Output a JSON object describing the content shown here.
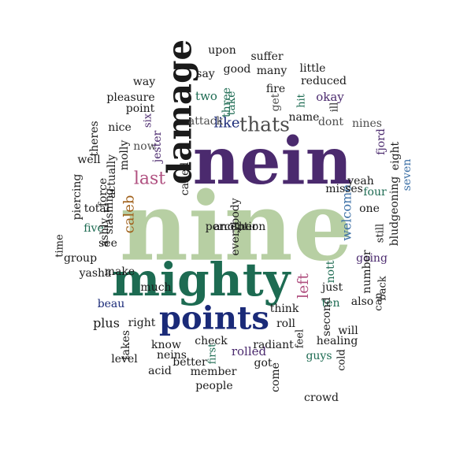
{
  "colors": {
    "black": "#1a1a1a",
    "gray": "#4d4d4d",
    "sage": "#b7cfa3",
    "purple": "#4b2a6e",
    "teal": "#1d6b52",
    "navy": "#1a2a78",
    "rose": "#b05080",
    "steel": "#3b6fa6",
    "ochre": "#a0601a"
  },
  "words": [
    {
      "text": "nine",
      "color": "sage",
      "size": 120,
      "rotate": 0
    },
    {
      "text": "nein",
      "color": "purple",
      "size": 82,
      "rotate": 0
    },
    {
      "text": "mighty",
      "color": "teal",
      "size": 58,
      "rotate": 0
    },
    {
      "text": "damage",
      "color": "black",
      "size": 42,
      "rotate": -90
    },
    {
      "text": "points",
      "color": "navy",
      "size": 40,
      "rotate": 0
    },
    {
      "text": "thats",
      "color": "gray",
      "size": 25,
      "rotate": 0
    },
    {
      "text": "last",
      "color": "rose",
      "size": 22,
      "rotate": 0
    },
    {
      "text": "like",
      "color": "navy",
      "size": 18,
      "rotate": 0
    },
    {
      "text": "caleb",
      "color": "ochre",
      "size": 18,
      "rotate": -90
    },
    {
      "text": "welcome",
      "color": "steel",
      "size": 16,
      "rotate": -90
    },
    {
      "text": "left",
      "color": "rose",
      "size": 19,
      "rotate": -90
    },
    {
      "text": "upon",
      "color": "black",
      "size": 14,
      "rotate": 0
    },
    {
      "text": "suffer",
      "color": "black",
      "size": 14,
      "rotate": 0
    },
    {
      "text": "good",
      "color": "black",
      "size": 14,
      "rotate": 0
    },
    {
      "text": "many",
      "color": "black",
      "size": 14,
      "rotate": 0
    },
    {
      "text": "say",
      "color": "black",
      "size": 14,
      "rotate": 0
    },
    {
      "text": "little",
      "color": "black",
      "size": 14,
      "rotate": 0
    },
    {
      "text": "way",
      "color": "black",
      "size": 14,
      "rotate": 0
    },
    {
      "text": "fire",
      "color": "black",
      "size": 14,
      "rotate": 0
    },
    {
      "text": "reduced",
      "color": "black",
      "size": 14,
      "rotate": 0
    },
    {
      "text": "pleasure",
      "color": "black",
      "size": 14,
      "rotate": 0
    },
    {
      "text": "two",
      "color": "teal",
      "size": 15,
      "rotate": 0
    },
    {
      "text": "three",
      "color": "teal",
      "size": 14,
      "rotate": -90
    },
    {
      "text": "take",
      "color": "teal",
      "size": 14,
      "rotate": -90
    },
    {
      "text": "get",
      "color": "gray",
      "size": 14,
      "rotate": -90
    },
    {
      "text": "okay",
      "color": "purple",
      "size": 15,
      "rotate": 0
    },
    {
      "text": "name",
      "color": "black",
      "size": 14,
      "rotate": 0
    },
    {
      "text": "hit",
      "color": "teal",
      "size": 13,
      "rotate": -90
    },
    {
      "text": "ill",
      "color": "black",
      "size": 13,
      "rotate": -90
    },
    {
      "text": "point",
      "color": "black",
      "size": 14,
      "rotate": 0
    },
    {
      "text": "attack",
      "color": "gray",
      "size": 14,
      "rotate": 0
    },
    {
      "text": "six",
      "color": "purple",
      "size": 13,
      "rotate": -90
    },
    {
      "text": "dont",
      "color": "gray",
      "size": 14,
      "rotate": 0
    },
    {
      "text": "nines",
      "color": "gray",
      "size": 14,
      "rotate": 0
    },
    {
      "text": "nice",
      "color": "black",
      "size": 14,
      "rotate": 0
    },
    {
      "text": "now",
      "color": "gray",
      "size": 14,
      "rotate": 0
    },
    {
      "text": "jester",
      "color": "purple",
      "size": 14,
      "rotate": -90
    },
    {
      "text": "fjord",
      "color": "purple",
      "size": 14,
      "rotate": -90
    },
    {
      "text": "theres",
      "color": "black",
      "size": 14,
      "rotate": -90
    },
    {
      "text": "yeah",
      "color": "black",
      "size": 14,
      "rotate": 0
    },
    {
      "text": "eight",
      "color": "black",
      "size": 14,
      "rotate": -90
    },
    {
      "text": "molly",
      "color": "black",
      "size": 14,
      "rotate": -90
    },
    {
      "text": "well",
      "color": "black",
      "size": 14,
      "rotate": 0
    },
    {
      "text": "misses",
      "color": "black",
      "size": 14,
      "rotate": 0
    },
    {
      "text": "seven",
      "color": "steel",
      "size": 14,
      "rotate": -90
    },
    {
      "text": "actually",
      "color": "black",
      "size": 14,
      "rotate": -90
    },
    {
      "text": "called",
      "color": "black",
      "size": 14,
      "rotate": -90
    },
    {
      "text": "four",
      "color": "teal",
      "size": 14,
      "rotate": 0
    },
    {
      "text": "one",
      "color": "black",
      "size": 14,
      "rotate": 0
    },
    {
      "text": "piercing",
      "color": "black",
      "size": 14,
      "rotate": -90
    },
    {
      "text": "force",
      "color": "black",
      "size": 14,
      "rotate": -90
    },
    {
      "text": "bludgeoning",
      "color": "black",
      "size": 14,
      "rotate": -90
    },
    {
      "text": "total",
      "color": "black",
      "size": 14,
      "rotate": 0
    },
    {
      "text": "slashing",
      "color": "black",
      "size": 14,
      "rotate": -90
    },
    {
      "text": "still",
      "color": "black",
      "size": 13,
      "rotate": -90
    },
    {
      "text": "five",
      "color": "teal",
      "size": 14,
      "rotate": 0
    },
    {
      "text": "ashly",
      "color": "black",
      "size": 14,
      "rotate": -90
    },
    {
      "text": "time",
      "color": "black",
      "size": 13,
      "rotate": -90
    },
    {
      "text": "see",
      "color": "black",
      "size": 14,
      "rotate": 0
    },
    {
      "text": "group",
      "color": "black",
      "size": 14,
      "rotate": 0
    },
    {
      "text": "going",
      "color": "purple",
      "size": 14,
      "rotate": 0
    },
    {
      "text": "number",
      "color": "black",
      "size": 14,
      "rotate": -90
    },
    {
      "text": "make",
      "color": "black",
      "size": 14,
      "rotate": 0
    },
    {
      "text": "yasha",
      "color": "black",
      "size": 14,
      "rotate": 0
    },
    {
      "text": "nott",
      "color": "teal",
      "size": 14,
      "rotate": -90
    },
    {
      "text": "back",
      "color": "black",
      "size": 13,
      "rotate": -90
    },
    {
      "text": "just",
      "color": "black",
      "size": 14,
      "rotate": 0
    },
    {
      "text": "much",
      "color": "black",
      "size": 14,
      "rotate": 0
    },
    {
      "text": "beau",
      "color": "navy",
      "size": 14,
      "rotate": 0
    },
    {
      "text": "ten",
      "color": "teal",
      "size": 14,
      "rotate": 0
    },
    {
      "text": "can",
      "color": "black",
      "size": 13,
      "rotate": -90
    },
    {
      "text": "think",
      "color": "black",
      "size": 14,
      "rotate": 0
    },
    {
      "text": "also",
      "color": "black",
      "size": 14,
      "rotate": 0
    },
    {
      "text": "roll",
      "color": "black",
      "size": 14,
      "rotate": 0
    },
    {
      "text": "second",
      "color": "black",
      "size": 14,
      "rotate": -90
    },
    {
      "text": "plus",
      "color": "black",
      "size": 16,
      "rotate": 0
    },
    {
      "text": "right",
      "color": "black",
      "size": 14,
      "rotate": 0
    },
    {
      "text": "healing",
      "color": "black",
      "size": 14,
      "rotate": 0
    },
    {
      "text": "will",
      "color": "black",
      "size": 14,
      "rotate": 0
    },
    {
      "text": "feel",
      "color": "black",
      "size": 13,
      "rotate": -90
    },
    {
      "text": "takes",
      "color": "black",
      "size": 14,
      "rotate": -90
    },
    {
      "text": "know",
      "color": "black",
      "size": 14,
      "rotate": 0
    },
    {
      "text": "check",
      "color": "black",
      "size": 14,
      "rotate": 0
    },
    {
      "text": "radiant",
      "color": "black",
      "size": 14,
      "rotate": 0
    },
    {
      "text": "rolled",
      "color": "purple",
      "size": 15,
      "rotate": 0
    },
    {
      "text": "guys",
      "color": "teal",
      "size": 14,
      "rotate": 0
    },
    {
      "text": "first",
      "color": "teal",
      "size": 13,
      "rotate": -90
    },
    {
      "text": "level",
      "color": "black",
      "size": 14,
      "rotate": 0
    },
    {
      "text": "neins",
      "color": "black",
      "size": 14,
      "rotate": 0
    },
    {
      "text": "better",
      "color": "black",
      "size": 14,
      "rotate": 0
    },
    {
      "text": "got",
      "color": "black",
      "size": 14,
      "rotate": 0
    },
    {
      "text": "cold",
      "color": "black",
      "size": 13,
      "rotate": -90
    },
    {
      "text": "acid",
      "color": "black",
      "size": 14,
      "rotate": 0
    },
    {
      "text": "member",
      "color": "black",
      "size": 14,
      "rotate": 0
    },
    {
      "text": "come",
      "color": "black",
      "size": 14,
      "rotate": -90
    },
    {
      "text": "crowd",
      "color": "black",
      "size": 14,
      "rotate": 0
    },
    {
      "text": "people",
      "color": "black",
      "size": 14,
      "rotate": 0
    },
    {
      "text": "another",
      "color": "black",
      "size": 14,
      "rotate": 0
    },
    {
      "text": "everybody",
      "color": "black",
      "size": 14,
      "rotate": -90
    },
    {
      "text": "perception",
      "color": "black",
      "size": 14,
      "rotate": 0
    }
  ]
}
